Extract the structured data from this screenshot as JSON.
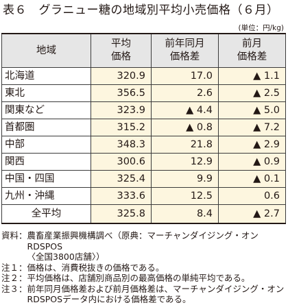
{
  "title": "表６　グラニュー糖の地域別平均小売価格（６月）",
  "unit": "(単位：円/kg)",
  "table": {
    "headers": {
      "region": "地域",
      "avg_price": [
        "平均",
        "価格"
      ],
      "yoy": [
        "前年同月",
        "価格差"
      ],
      "mom": [
        "前月",
        "価格差"
      ]
    },
    "rows": [
      {
        "region": "北海道",
        "avg_price": "320.9",
        "yoy": "17.0",
        "mom": "▲ 1.1"
      },
      {
        "region": "東北",
        "avg_price": "356.5",
        "yoy": "2.6",
        "mom": "▲ 2.5"
      },
      {
        "region": "関東など",
        "avg_price": "323.9",
        "yoy": "▲ 4.4",
        "mom": "▲ 5.0"
      },
      {
        "region": "首都圏",
        "avg_price": "315.2",
        "yoy": "▲ 0.8",
        "mom": "▲ 7.2"
      },
      {
        "region": "中部",
        "avg_price": "348.3",
        "yoy": "21.8",
        "mom": "▲ 2.9"
      },
      {
        "region": "関西",
        "avg_price": "300.6",
        "yoy": "12.9",
        "mom": "▲ 0.9"
      },
      {
        "region": "中国・四国",
        "avg_price": "325.4",
        "yoy": "9.9",
        "mom": "▲ 0.1"
      },
      {
        "region": "九州・沖縄",
        "avg_price": "333.6",
        "yoy": "12.5",
        "mom": "0.6"
      },
      {
        "region": "全平均",
        "avg_price": "325.8",
        "yoy": "8.4",
        "mom": "▲ 2.7"
      }
    ]
  },
  "notes": [
    {
      "label": "資料：",
      "lines": [
        "農畜産業振興機構調べ（原典：マーチャンダイジング・オンRDSPOS",
        "〈全国3800店舗〉）"
      ]
    },
    {
      "label": "注１：",
      "lines": [
        "価格は、消費税抜きの価格である。"
      ]
    },
    {
      "label": "注２：",
      "lines": [
        "平均価格は、店舗別商品別の最高価格の単純平均である。"
      ]
    },
    {
      "label": "注３：",
      "lines": [
        "前年同月価格差および前月価格差は、マーチャンダイジング・オン",
        "RDSPOSデータ内における価格差である。"
      ]
    }
  ]
}
